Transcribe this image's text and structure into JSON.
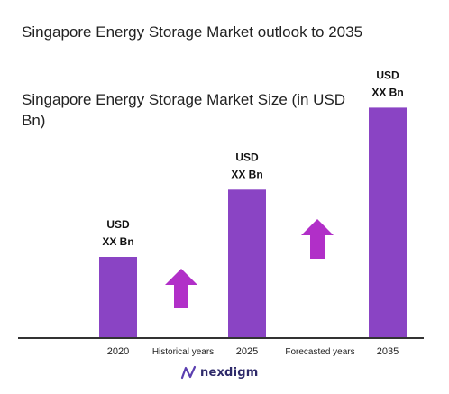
{
  "title": "Singapore Energy Storage Market outlook to 2035",
  "chart_data": {
    "type": "bar",
    "title": "Singapore Energy Storage Market Size (in USD Bn)",
    "categories": [
      "2020",
      "2025",
      "2035"
    ],
    "values": [
      1.0,
      1.83,
      2.84
    ],
    "data_labels": [
      "USD\nXX Bn",
      "USD\nXX Bn",
      "USD\nXX Bn"
    ],
    "period_labels": [
      "Historical years",
      "Forecasted years"
    ],
    "ylim": [
      0,
      3.0
    ],
    "grid": false,
    "legend": "none",
    "colors": {
      "bar": "#8a44c4",
      "arrow": "#b12fc8",
      "axis": "#333333"
    }
  },
  "logo": {
    "text": "nexdigm"
  }
}
